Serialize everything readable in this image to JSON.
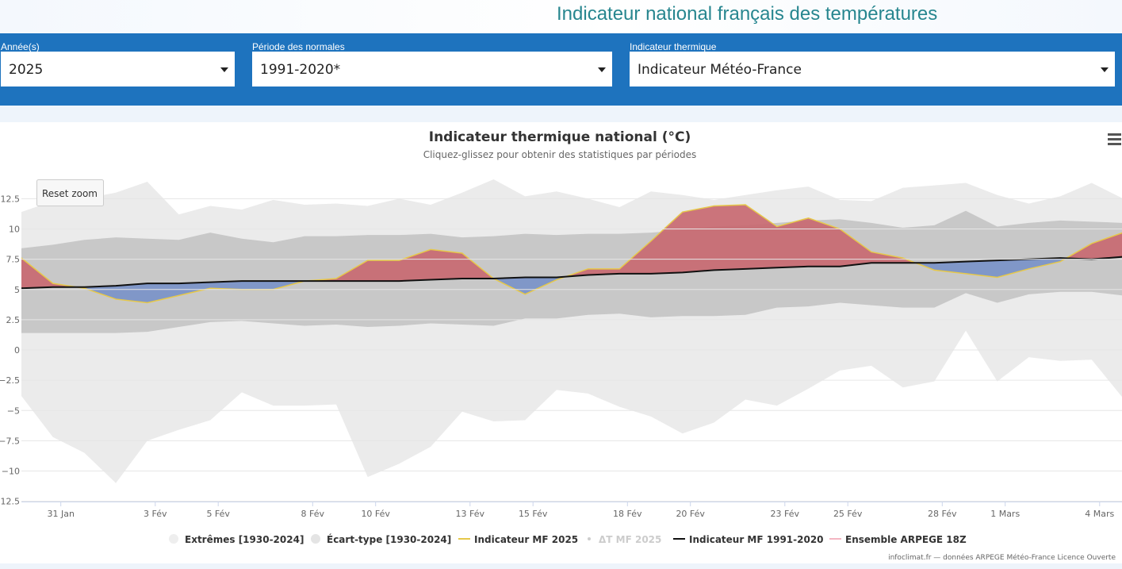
{
  "header": {
    "title": "Indicateur national français des températures"
  },
  "filters": {
    "years": {
      "label": "Année(s)",
      "value": "2025"
    },
    "normals": {
      "label": "Période des normales",
      "value": "1991-2020*"
    },
    "indicator": {
      "label": "Indicateur thermique",
      "value": "Indicateur Météo-France"
    }
  },
  "chart": {
    "reset_zoom_label": "Reset zoom",
    "credits": "infoclimat.fr — données ARPEGE Météo-France Licence Ouverte",
    "menu_icon": "hamburger-menu-icon"
  },
  "chart_data": {
    "type": "area",
    "title": "Indicateur thermique national (°C)",
    "subtitle": "Cliquez-glissez pour obtenir des statistiques par périodes",
    "xlabel": "",
    "ylabel": "",
    "x_start": "2025-01-30",
    "x_tick_labels": [
      "31 Jan",
      "3 Fév",
      "5 Fév",
      "8 Fév",
      "10 Fév",
      "13 Fév",
      "15 Fév",
      "18 Fév",
      "20 Fév",
      "23 Fév",
      "25 Fév",
      "28 Fév",
      "1 Mars",
      "4 Mars"
    ],
    "y_tick_labels": [
      "12.5",
      "10",
      "7.5",
      "5",
      "2.5",
      "0",
      "−2.5",
      "−5",
      "−7.5",
      "−10",
      "12.5"
    ],
    "ylim": [
      -12.5,
      12.5
    ],
    "grid": true,
    "legend_position": "bottom",
    "series": [
      {
        "name": "Extrêmes [1930-2024]",
        "type": "arearange",
        "color": "#ebebeb",
        "low": [
          -3.8,
          -7.2,
          -8.5,
          -11,
          -7.5,
          -6.6,
          -5.8,
          -3.5,
          -4.6,
          -4.6,
          -4.5,
          -10.5,
          -9.4,
          -8,
          -5.1,
          -5.9,
          -5.8,
          -3.3,
          -3.6,
          -4.7,
          -5.5,
          -6.9,
          -6,
          -4.1,
          -4.6,
          -3.2,
          -1.7,
          -1.3,
          -3.1,
          -2.6,
          1.6,
          -2.6,
          -0.6,
          -0.9,
          -0.8,
          -4
        ],
        "high": [
          11.4,
          12.3,
          12.5,
          13,
          13.9,
          11.2,
          11.9,
          11.6,
          12.4,
          12,
          12.1,
          11.9,
          12.5,
          12,
          13,
          14.1,
          12.7,
          13.1,
          12.5,
          11.8,
          13.1,
          12.8,
          12.4,
          12.8,
          13.2,
          13.5,
          12.4,
          12.3,
          13.4,
          13.6,
          13.8,
          12.8,
          12.1,
          12.7,
          13.8,
          12.5
        ]
      },
      {
        "name": "Écart-type [1930-2024]",
        "type": "arearange",
        "color": "#c8c8c8",
        "low": [
          1.4,
          1.4,
          1.4,
          1.4,
          1.5,
          1.9,
          2.3,
          2.4,
          2.2,
          2,
          2.1,
          1.9,
          2,
          2.2,
          2.1,
          2,
          2.6,
          2.6,
          2.9,
          3.0,
          2.7,
          2.8,
          2.8,
          2.9,
          3.5,
          3.6,
          3.9,
          3.7,
          3.5,
          3.5,
          4.7,
          3.9,
          4.6,
          4.8,
          4.8,
          4.5
        ],
        "high": [
          8.4,
          8.7,
          9.1,
          9.3,
          9.2,
          9.1,
          9.7,
          9.2,
          8.9,
          9.4,
          9.4,
          9.5,
          9.5,
          9.6,
          9.3,
          9.4,
          9.6,
          9.5,
          9.6,
          9.6,
          9.7,
          9.9,
          10.2,
          10.3,
          10.5,
          10.7,
          10.8,
          10.5,
          10.1,
          10.3,
          11.5,
          10.2,
          10.5,
          10.7,
          10.6,
          10.5
        ]
      },
      {
        "name": "Indicateur MF 2025",
        "type": "line",
        "color": "#e6c84a",
        "values": [
          7.6,
          5.5,
          5.1,
          4.2,
          3.9,
          4.5,
          5.1,
          5.0,
          5.0,
          5.7,
          5.9,
          7.4,
          7.4,
          8.3,
          8.0,
          5.9,
          4.6,
          5.8,
          6.7,
          6.7,
          9.0,
          11.4,
          11.9,
          12.0,
          10.2,
          10.9,
          10.0,
          8.1,
          7.6,
          6.6,
          6.3,
          6.0,
          6.7,
          7.3,
          8.8,
          9.7
        ]
      },
      {
        "name": "ΔT MF 2025",
        "type": "area-diff",
        "visible": false,
        "color_positive": "#c8676f",
        "color_negative": "#7891c8"
      },
      {
        "name": "Indicateur MF 1991-2020",
        "type": "line",
        "color": "#111111",
        "values": [
          5.1,
          5.2,
          5.2,
          5.3,
          5.5,
          5.5,
          5.6,
          5.7,
          5.7,
          5.7,
          5.7,
          5.7,
          5.7,
          5.8,
          5.9,
          5.9,
          6.0,
          6.0,
          6.2,
          6.3,
          6.3,
          6.4,
          6.6,
          6.7,
          6.8,
          6.9,
          6.9,
          7.2,
          7.2,
          7.2,
          7.3,
          7.4,
          7.5,
          7.6,
          7.5,
          7.7
        ]
      },
      {
        "name": "Ensemble ARPEGE 18Z",
        "type": "line",
        "color": "#f4b6c2",
        "values": []
      }
    ]
  }
}
